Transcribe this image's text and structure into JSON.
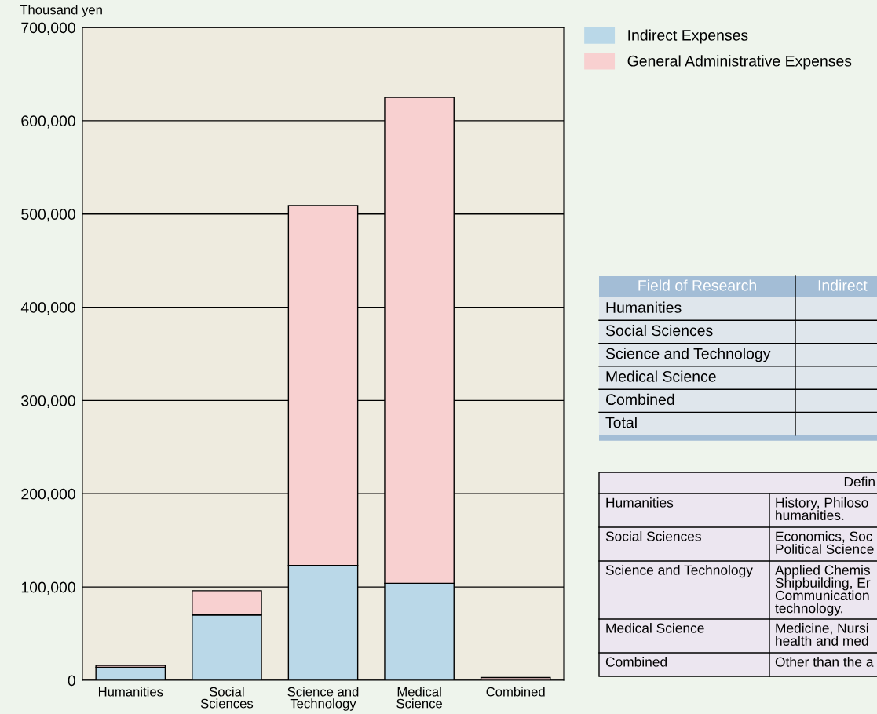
{
  "chart_data": {
    "type": "bar",
    "stacked": true,
    "ylabel": "Thousand yen",
    "categories": [
      "Humanities",
      "Social\nSciences",
      "Science and\nTechnology",
      "Medical\nScience",
      "Combined"
    ],
    "series": [
      {
        "name": "Indirect Expenses",
        "color": "#bad8e8",
        "values": [
          14000,
          70000,
          123000,
          104000,
          0
        ]
      },
      {
        "name": "General Administrative Expenses",
        "color": "#f8d0d0",
        "values": [
          2000,
          26000,
          386000,
          521000,
          3000
        ]
      }
    ],
    "ylim": [
      0,
      700000
    ],
    "yticks": [
      0,
      {
        "value": 100000,
        "label": "100,000"
      },
      {
        "value": 200000,
        "label": "200,000"
      },
      {
        "value": 300000,
        "label": "300,000"
      },
      {
        "value": 400000,
        "label": "400,000"
      },
      {
        "value": 500000,
        "label": "500,000"
      },
      {
        "value": 600000,
        "label": "600,000"
      },
      {
        "value": 700000,
        "label": "700,000"
      }
    ],
    "grid": "y",
    "legend": "top right",
    "annotations": [
      "Field of Research",
      "Indirect",
      "Humanities",
      "Social Sciences",
      "Science and Technology",
      "Medical Science",
      "Combined",
      "Total",
      "Defin",
      "Humanities",
      "History, Philoso\nhumanities.",
      "Social Sciences",
      "Economics, Soc\nPolitical Science",
      "Science and Technology",
      "Applied Chemis\nShipbuilding, Er\nCommunication\ntechnology.",
      "Medical Science",
      "Medicine, Nursi\nhealth and med",
      "Combined",
      "Other than the a"
    ]
  }
}
